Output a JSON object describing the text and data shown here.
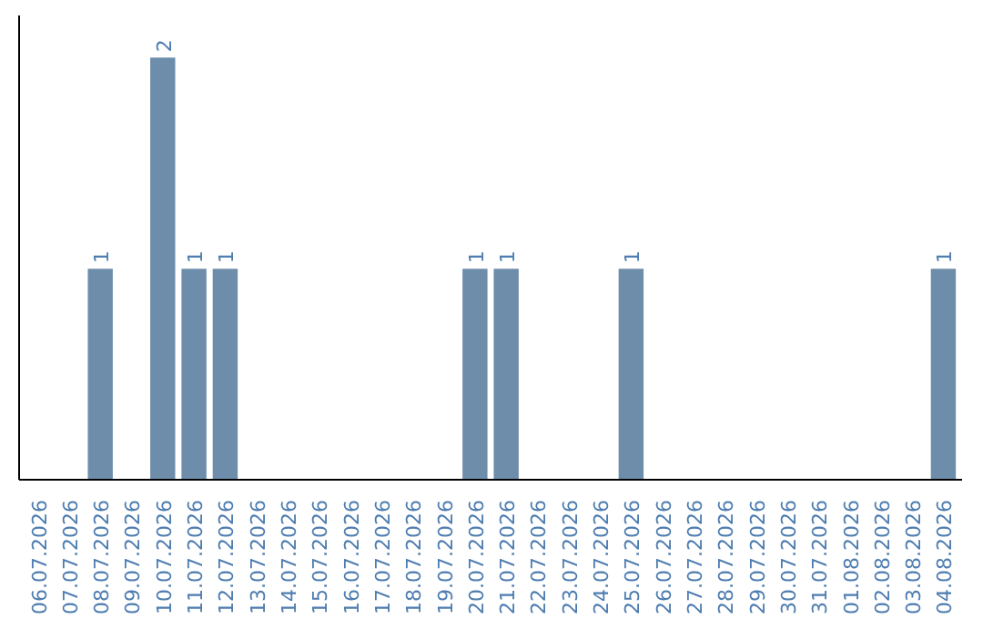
{
  "chart_data": {
    "type": "bar",
    "categories": [
      "06.07.2026",
      "07.07.2026",
      "08.07.2026",
      "09.07.2026",
      "10.07.2026",
      "11.07.2026",
      "12.07.2026",
      "13.07.2026",
      "14.07.2026",
      "15.07.2026",
      "16.07.2026",
      "17.07.2026",
      "18.07.2026",
      "19.07.2026",
      "20.07.2026",
      "21.07.2026",
      "22.07.2026",
      "23.07.2026",
      "24.07.2026",
      "25.07.2026",
      "26.07.2026",
      "27.07.2026",
      "28.07.2026",
      "29.07.2026",
      "30.07.2026",
      "31.07.2026",
      "01.08.2026",
      "02.08.2026",
      "03.08.2026",
      "04.08.2026"
    ],
    "values": [
      0,
      0,
      1,
      0,
      2,
      1,
      1,
      0,
      0,
      0,
      0,
      0,
      0,
      0,
      1,
      1,
      0,
      0,
      0,
      1,
      0,
      0,
      0,
      0,
      0,
      0,
      0,
      0,
      0,
      1
    ],
    "value_labels": [
      null,
      null,
      "1",
      null,
      "2",
      "1",
      "1",
      null,
      null,
      null,
      null,
      null,
      null,
      null,
      "1",
      "1",
      null,
      null,
      null,
      "1",
      null,
      null,
      null,
      null,
      null,
      null,
      null,
      null,
      null,
      "1"
    ],
    "color": "#6d8dab",
    "grid": false,
    "tick_labels": "x"
  }
}
